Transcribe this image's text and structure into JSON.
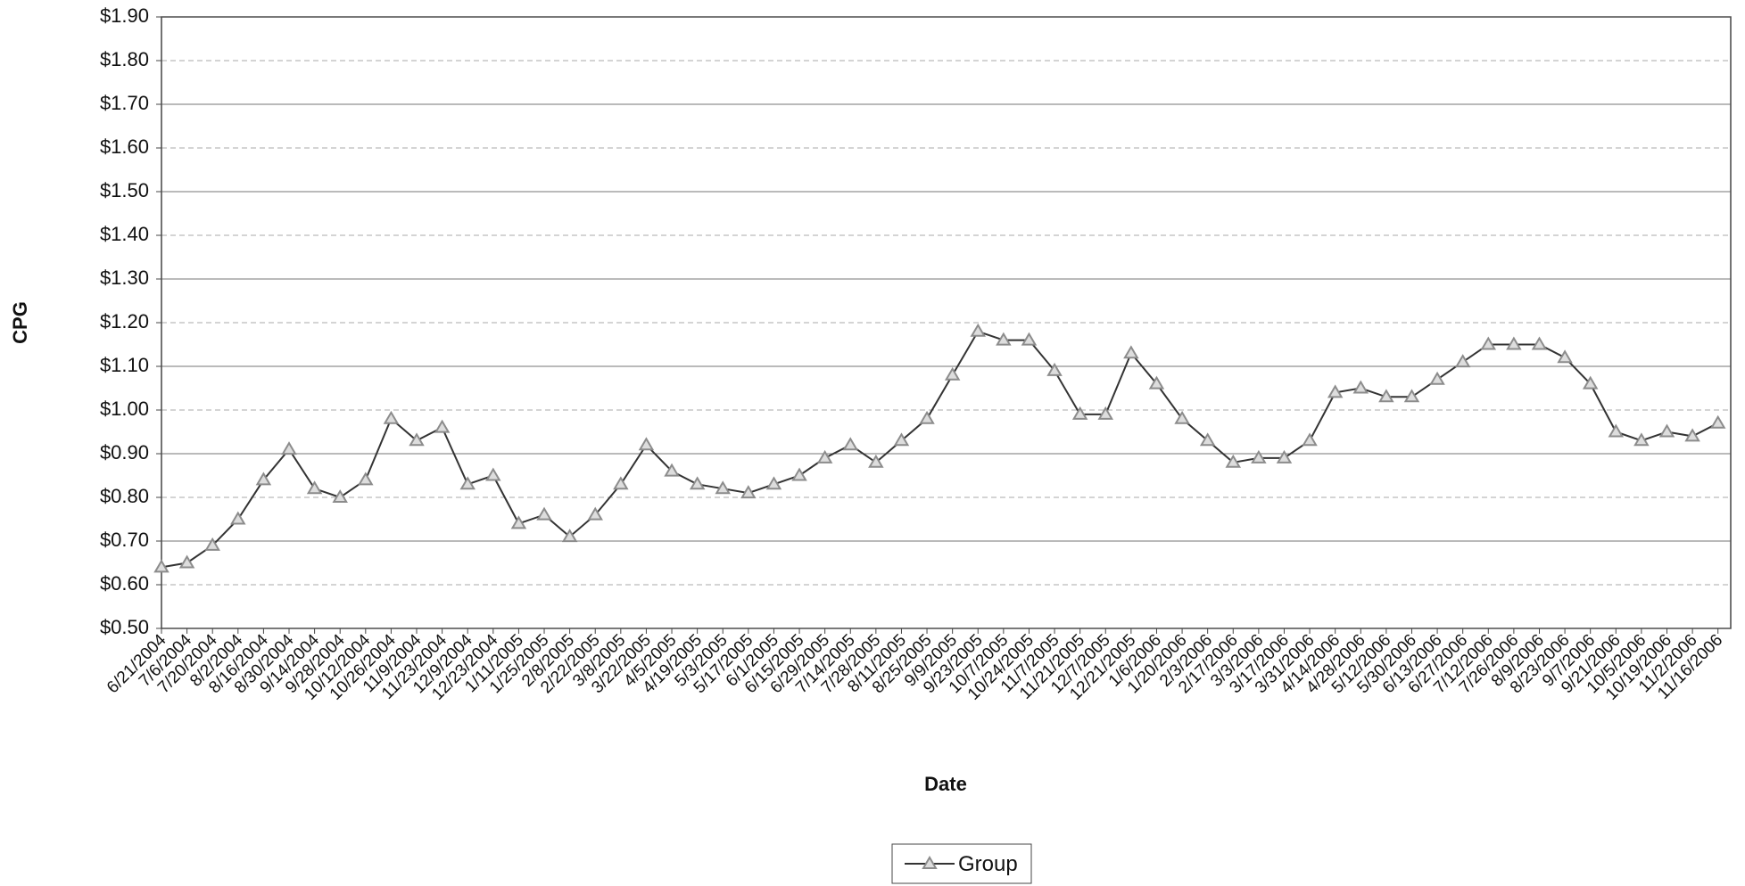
{
  "chart_data": {
    "type": "line",
    "xlabel": "Date",
    "ylabel": "CPG",
    "categories": [
      "6/21/2004",
      "7/6/2004",
      "7/20/2004",
      "8/2/2004",
      "8/16/2004",
      "8/30/2004",
      "9/14/2004",
      "9/28/2004",
      "10/12/2004",
      "10/26/2004",
      "11/9/2004",
      "11/23/2004",
      "12/9/2004",
      "12/23/2004",
      "1/11/2005",
      "1/25/2005",
      "2/8/2005",
      "2/22/2005",
      "3/8/2005",
      "3/22/2005",
      "4/5/2005",
      "4/19/2005",
      "5/3/2005",
      "5/17/2005",
      "6/1/2005",
      "6/15/2005",
      "6/29/2005",
      "7/14/2005",
      "7/28/2005",
      "8/11/2005",
      "8/25/2005",
      "9/9/2005",
      "9/23/2005",
      "10/7/2005",
      "10/24/2005",
      "11/7/2005",
      "11/21/2005",
      "12/7/2005",
      "12/21/2005",
      "1/6/2006",
      "1/20/2006",
      "2/3/2006",
      "2/17/2006",
      "3/3/2006",
      "3/17/2006",
      "3/31/2006",
      "4/14/2006",
      "4/28/2006",
      "5/12/2006",
      "5/30/2006",
      "6/13/2006",
      "6/27/2006",
      "7/12/2006",
      "7/26/2006",
      "8/9/2006",
      "8/23/2006",
      "9/7/2006",
      "9/21/2006",
      "10/5/2006",
      "10/19/2006",
      "11/2/2006",
      "11/16/2006"
    ],
    "series": [
      {
        "name": "Group",
        "color": "#333333",
        "marker_color": "#8c8c8c",
        "values": [
          0.64,
          0.65,
          0.69,
          0.75,
          0.84,
          0.91,
          0.82,
          0.8,
          0.84,
          0.98,
          0.93,
          0.96,
          0.83,
          0.85,
          0.74,
          0.76,
          0.71,
          0.76,
          0.83,
          0.92,
          0.86,
          0.83,
          0.82,
          0.81,
          0.83,
          0.85,
          0.89,
          0.92,
          0.88,
          0.93,
          0.98,
          1.08,
          1.18,
          1.16,
          1.16,
          1.09,
          0.99,
          0.99,
          1.13,
          1.06,
          0.98,
          0.93,
          0.88,
          0.89,
          0.89,
          0.93,
          1.04,
          1.05,
          1.03,
          1.03,
          1.07,
          1.11,
          1.15,
          1.15,
          1.15,
          1.12,
          1.06,
          0.95,
          0.93,
          0.95,
          0.94,
          0.97
        ]
      }
    ],
    "ylim": [
      0.5,
      1.9
    ],
    "yticks": [
      {
        "value": 0.5,
        "label": "$0.50"
      },
      {
        "value": 0.6,
        "label": "$0.60"
      },
      {
        "value": 0.7,
        "label": "$0.70"
      },
      {
        "value": 0.8,
        "label": "$0.80"
      },
      {
        "value": 0.9,
        "label": "$0.90"
      },
      {
        "value": 1.0,
        "label": "$1.00"
      },
      {
        "value": 1.1,
        "label": "$1.10"
      },
      {
        "value": 1.2,
        "label": "$1.20"
      },
      {
        "value": 1.3,
        "label": "$1.30"
      },
      {
        "value": 1.4,
        "label": "$1.40"
      },
      {
        "value": 1.5,
        "label": "$1.50"
      },
      {
        "value": 1.6,
        "label": "$1.60"
      },
      {
        "value": 1.7,
        "label": "$1.70"
      },
      {
        "value": 1.8,
        "label": "$1.80"
      },
      {
        "value": 1.9,
        "label": "$1.90"
      }
    ],
    "grid": true,
    "legend": "bottom"
  }
}
